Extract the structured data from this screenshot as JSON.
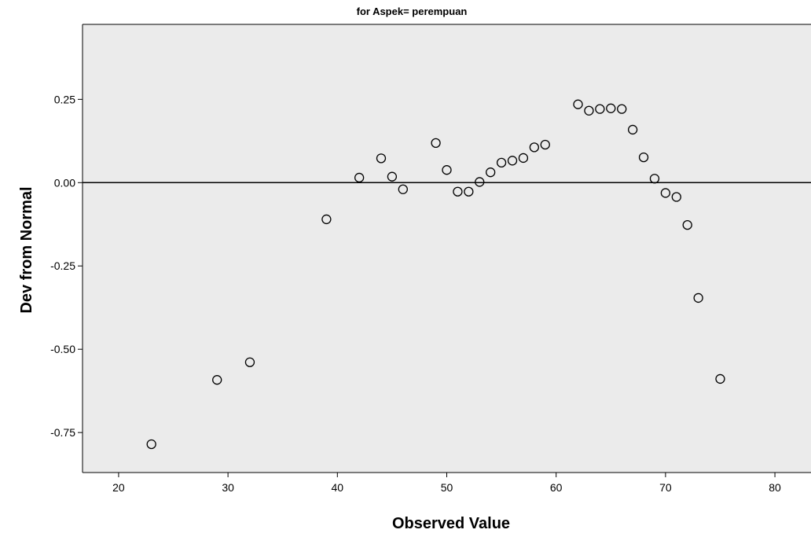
{
  "chart_data": {
    "type": "scatter",
    "title": "for Aspek= perempuan",
    "xlabel": "Observed Value",
    "ylabel": "Dev from Normal",
    "xlim": [
      16.7,
      83.3
    ],
    "ylim": [
      -0.87,
      0.475
    ],
    "x_ticks": [
      20,
      30,
      40,
      50,
      60,
      70,
      80
    ],
    "x_tick_labels": [
      "20",
      "30",
      "40",
      "50",
      "60",
      "70",
      "80"
    ],
    "y_ticks": [
      0.25,
      0.0,
      -0.25,
      -0.5,
      -0.75
    ],
    "y_tick_labels": [
      "0.25",
      "0.00",
      "-0.25",
      "-0.50",
      "-0.75"
    ],
    "reference_line": 0,
    "grid": false,
    "colors": {
      "plot_background": "#ebebeb",
      "marker": "#000000",
      "page": "#ffffff"
    },
    "points": [
      {
        "x": 23,
        "y": -0.785
      },
      {
        "x": 29,
        "y": -0.592
      },
      {
        "x": 32,
        "y": -0.539
      },
      {
        "x": 39,
        "y": -0.11
      },
      {
        "x": 42,
        "y": 0.015
      },
      {
        "x": 44,
        "y": 0.073
      },
      {
        "x": 45,
        "y": 0.018
      },
      {
        "x": 46,
        "y": -0.02
      },
      {
        "x": 49,
        "y": 0.119
      },
      {
        "x": 50,
        "y": 0.038
      },
      {
        "x": 51,
        "y": -0.027
      },
      {
        "x": 52,
        "y": -0.027
      },
      {
        "x": 53,
        "y": 0.002
      },
      {
        "x": 54,
        "y": 0.031
      },
      {
        "x": 55,
        "y": 0.06
      },
      {
        "x": 56,
        "y": 0.066
      },
      {
        "x": 57,
        "y": 0.074
      },
      {
        "x": 58,
        "y": 0.106
      },
      {
        "x": 59,
        "y": 0.114
      },
      {
        "x": 62,
        "y": 0.235
      },
      {
        "x": 63,
        "y": 0.216
      },
      {
        "x": 64,
        "y": 0.221
      },
      {
        "x": 65,
        "y": 0.223
      },
      {
        "x": 66,
        "y": 0.221
      },
      {
        "x": 67,
        "y": 0.159
      },
      {
        "x": 68,
        "y": 0.076
      },
      {
        "x": 69,
        "y": 0.012
      },
      {
        "x": 70,
        "y": -0.031
      },
      {
        "x": 71,
        "y": -0.043
      },
      {
        "x": 72,
        "y": -0.127
      },
      {
        "x": 73,
        "y": -0.346
      },
      {
        "x": 75,
        "y": -0.589
      }
    ]
  }
}
